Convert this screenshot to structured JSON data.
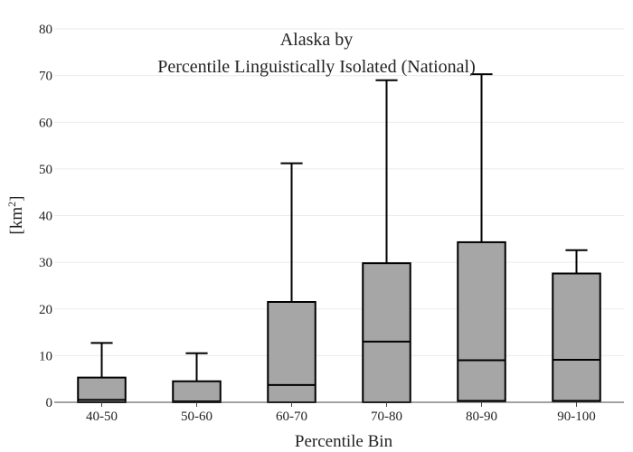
{
  "chart_data": {
    "type": "box",
    "title_line1": "Alaska  by",
    "title_line2": "Percentile Linguistically Isolated (National)",
    "xlabel": "Percentile Bin",
    "ylabel_base": "[km",
    "ylabel_sup": "2",
    "ylabel_close": "]",
    "ylim": [
      0,
      80
    ],
    "yticks": [
      0,
      10,
      20,
      30,
      40,
      50,
      60,
      70,
      80
    ],
    "grid": true,
    "box_color": "#a6a6a6",
    "line_color": "#000000",
    "categories": [
      "40-50",
      "50-60",
      "60-70",
      "70-80",
      "80-90",
      "90-100"
    ],
    "boxes": [
      {
        "category": "40-50",
        "min": 0,
        "q1": 0,
        "median": 0.5,
        "q3": 5.3,
        "max": 12.7
      },
      {
        "category": "50-60",
        "min": 0,
        "q1": 0,
        "median": 0.2,
        "q3": 4.5,
        "max": 10.5
      },
      {
        "category": "60-70",
        "min": 0,
        "q1": 0,
        "median": 3.7,
        "q3": 21.5,
        "max": 51.2
      },
      {
        "category": "70-80",
        "min": 0,
        "q1": 0,
        "median": 13.0,
        "q3": 29.8,
        "max": 69.0
      },
      {
        "category": "80-90",
        "min": 0,
        "q1": 0.3,
        "median": 9.0,
        "q3": 34.3,
        "max": 70.3
      },
      {
        "category": "90-100",
        "min": 0,
        "q1": 0.3,
        "median": 9.1,
        "q3": 27.6,
        "max": 32.6
      }
    ]
  }
}
